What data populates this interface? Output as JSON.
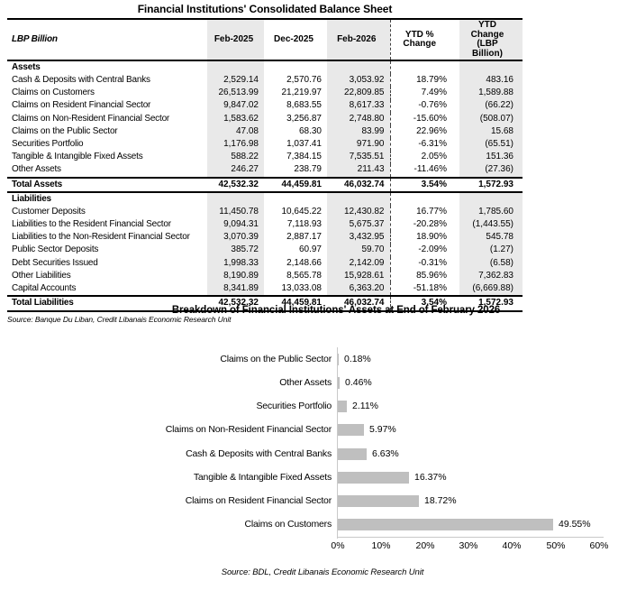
{
  "table": {
    "title": "Financial Institutions' Consolidated Balance Sheet",
    "unit_label": "LBP Billion",
    "columns": [
      "Feb-2025",
      "Dec-2025",
      "Feb-2026",
      "YTD %\nChange",
      "YTD Change\n(LBP Billion)"
    ],
    "sections": [
      {
        "header": "Assets",
        "rows": [
          {
            "label": "Cash & Deposits with Central Banks",
            "values": [
              "2,529.14",
              "2,570.76",
              "3,053.92",
              "18.79%",
              "483.16"
            ]
          },
          {
            "label": "Claims on Customers",
            "values": [
              "26,513.99",
              "21,219.97",
              "22,809.85",
              "7.49%",
              "1,589.88"
            ]
          },
          {
            "label": "Claims on Resident Financial Sector",
            "values": [
              "9,847.02",
              "8,683.55",
              "8,617.33",
              "-0.76%",
              "(66.22)"
            ]
          },
          {
            "label": "Claims on Non-Resident Financial Sector",
            "values": [
              "1,583.62",
              "3,256.87",
              "2,748.80",
              "-15.60%",
              "(508.07)"
            ]
          },
          {
            "label": "Claims on the Public Sector",
            "values": [
              "47.08",
              "68.30",
              "83.99",
              "22.96%",
              "15.68"
            ]
          },
          {
            "label": "Securities Portfolio",
            "values": [
              "1,176.98",
              "1,037.41",
              "971.90",
              "-6.31%",
              "(65.51)"
            ]
          },
          {
            "label": "Tangible & Intangible Fixed Assets",
            "values": [
              "588.22",
              "7,384.15",
              "7,535.51",
              "2.05%",
              "151.36"
            ]
          },
          {
            "label": "Other Assets",
            "values": [
              "246.27",
              "238.79",
              "211.43",
              "-11.46%",
              "(27.36)"
            ]
          }
        ],
        "total": {
          "label": "Total Assets",
          "values": [
            "42,532.32",
            "44,459.81",
            "46,032.74",
            "3.54%",
            "1,572.93"
          ]
        }
      },
      {
        "header": "Liabilities",
        "rows": [
          {
            "label": "Customer Deposits",
            "values": [
              "11,450.78",
              "10,645.22",
              "12,430.82",
              "16.77%",
              "1,785.60"
            ]
          },
          {
            "label": "Liabilities to the Resident Financial Sector",
            "values": [
              "9,094.31",
              "7,118.93",
              "5,675.37",
              "-20.28%",
              "(1,443.55)"
            ]
          },
          {
            "label": "Liabilities to the Non-Resident Financial Sector",
            "values": [
              "3,070.39",
              "2,887.17",
              "3,432.95",
              "18.90%",
              "545.78"
            ]
          },
          {
            "label": "Public Sector Deposits",
            "values": [
              "385.72",
              "60.97",
              "59.70",
              "-2.09%",
              "(1.27)"
            ]
          },
          {
            "label": "Debt Securities Issued",
            "values": [
              "1,998.33",
              "2,148.66",
              "2,142.09",
              "-0.31%",
              "(6.58)"
            ]
          },
          {
            "label": "Other Liabilities",
            "values": [
              "8,190.89",
              "8,565.78",
              "15,928.61",
              "85.96%",
              "7,362.83"
            ]
          },
          {
            "label": "Capital Accounts",
            "values": [
              "8,341.89",
              "13,033.08",
              "6,363.20",
              "-51.18%",
              "(6,669.88)"
            ]
          }
        ],
        "total": {
          "label": "Total Liabilities",
          "values": [
            "42,532.32",
            "44,459.81",
            "46,032.74",
            "3.54%",
            "1,572.93"
          ]
        }
      }
    ],
    "source": "Source: Banque Du Liban, Credit Libanais Economic Research Unit",
    "shade_color": "#e9e9e9"
  },
  "chart_data": {
    "type": "bar",
    "orientation": "horizontal",
    "title": "Breakdown of Financial Institutions' Assets at End of February 2026",
    "categories": [
      "Claims on the Public Sector",
      "Other Assets",
      "Securities Portfolio",
      "Claims on Non-Resident Financial Sector",
      "Cash & Deposits with Central Banks",
      "Tangible & Intangible Fixed Assets",
      "Claims on Resident Financial Sector",
      "Claims on Customers"
    ],
    "values": [
      0.18,
      0.46,
      2.11,
      5.97,
      6.63,
      16.37,
      18.72,
      49.55
    ],
    "value_labels": [
      "0.18%",
      "0.46%",
      "2.11%",
      "5.97%",
      "6.63%",
      "16.37%",
      "18.72%",
      "49.55%"
    ],
    "xlim": [
      0,
      60
    ],
    "xticks": [
      "0%",
      "10%",
      "20%",
      "30%",
      "40%",
      "50%",
      "60%"
    ],
    "grid": false,
    "legend": false,
    "bar_color": "#bfbfbf",
    "axis_color": "#c9c9c9",
    "source": "Source: BDL, Credit Libanais Economic Research Unit"
  }
}
